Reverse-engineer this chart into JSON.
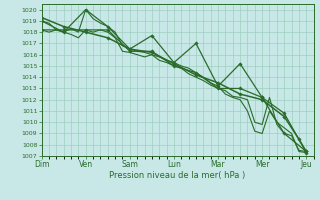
{
  "xlabel": "Pression niveau de la mer( hPa )",
  "ylim": [
    1007,
    1020.5
  ],
  "day_labels": [
    "Dim",
    "Ven",
    "Sam",
    "Lun",
    "Mar",
    "Mer",
    "Jeu"
  ],
  "day_positions": [
    0,
    6,
    12,
    18,
    24,
    30,
    36
  ],
  "background_color": "#c8e8e8",
  "grid_color": "#9fcfbf",
  "line_color": "#2a6b2a",
  "series1_x": [
    0,
    1,
    2,
    3,
    4,
    5,
    6,
    7,
    8,
    9,
    10,
    11,
    12,
    13,
    14,
    15,
    16,
    17,
    18,
    19,
    20,
    21,
    22,
    23,
    24,
    25,
    26,
    27,
    28,
    29,
    30,
    31,
    32,
    33,
    34,
    35,
    36
  ],
  "series1_y": [
    1019.0,
    1018.8,
    1018.2,
    1018.0,
    1018.3,
    1018.0,
    1020.0,
    1019.2,
    1018.8,
    1018.5,
    1018.0,
    1016.8,
    1016.5,
    1016.3,
    1016.2,
    1016.0,
    1015.8,
    1015.5,
    1015.3,
    1015.0,
    1014.8,
    1014.4,
    1014.0,
    1013.5,
    1013.2,
    1012.5,
    1012.2,
    1012.0,
    1011.0,
    1009.2,
    1009.0,
    1011.0,
    1010.0,
    1009.5,
    1009.0,
    1007.4,
    1007.3
  ],
  "series2_x": [
    0,
    1,
    2,
    3,
    4,
    5,
    6,
    7,
    8,
    9,
    10,
    11,
    12,
    13,
    14,
    15,
    16,
    17,
    18,
    19,
    20,
    21,
    22,
    23,
    24,
    25,
    26,
    27,
    28,
    29,
    30,
    31,
    32,
    33,
    34,
    35,
    36
  ],
  "series2_y": [
    1018.2,
    1018.0,
    1018.2,
    1018.0,
    1017.8,
    1017.5,
    1018.2,
    1018.0,
    1018.2,
    1018.0,
    1017.5,
    1016.3,
    1016.2,
    1016.0,
    1015.8,
    1016.0,
    1015.5,
    1015.3,
    1015.0,
    1014.8,
    1014.3,
    1014.0,
    1013.7,
    1013.3,
    1013.0,
    1012.8,
    1012.3,
    1012.2,
    1012.0,
    1010.0,
    1009.8,
    1012.2,
    1009.8,
    1009.0,
    1008.8,
    1007.5,
    1007.4
  ],
  "series3_x": [
    0,
    3,
    6,
    9,
    12,
    15,
    18,
    21,
    24,
    27,
    30,
    33,
    35,
    36
  ],
  "series3_y": [
    1019.3,
    1018.5,
    1018.0,
    1017.5,
    1016.5,
    1016.2,
    1015.2,
    1014.2,
    1013.5,
    1012.5,
    1012.0,
    1010.5,
    1008.5,
    1007.4
  ],
  "markers1_x": [
    0,
    3,
    6,
    9,
    12,
    15,
    18,
    21,
    24,
    27,
    30,
    33,
    36
  ],
  "markers1_y": [
    1019.0,
    1018.0,
    1020.0,
    1018.5,
    1016.5,
    1017.7,
    1015.3,
    1017.0,
    1013.2,
    1015.2,
    1012.2,
    1010.8,
    1007.3
  ],
  "markers2_x": [
    0,
    3,
    6,
    9,
    12,
    15,
    18,
    21,
    24,
    27,
    30,
    33,
    36
  ],
  "markers2_y": [
    1018.2,
    1018.2,
    1018.2,
    1018.2,
    1016.3,
    1016.3,
    1015.0,
    1014.4,
    1013.0,
    1013.0,
    1012.2,
    1009.0,
    1007.4
  ]
}
